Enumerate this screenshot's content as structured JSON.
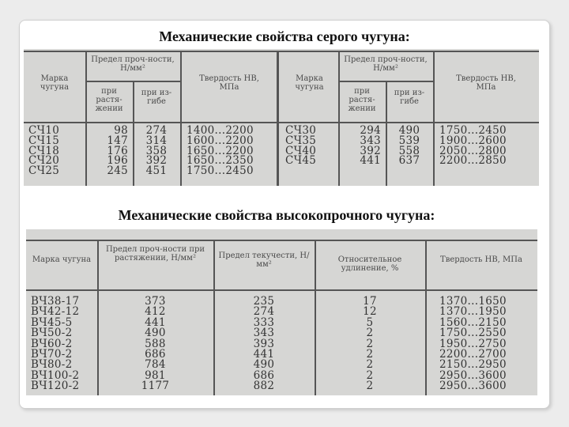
{
  "gray_iron": {
    "title": "Механические свойства серого чугуна:",
    "headers": {
      "grade": "Марка чугуна",
      "strength": "Предел проч-ности, Н/мм²",
      "tension": "при растя-жении",
      "bending": "при из-гибе",
      "hardness": "Твердость НВ, МПа"
    },
    "left_rows": [
      {
        "grade": "СЧ10",
        "tension": "98",
        "bending": "274",
        "hardness": "1400...2200"
      },
      {
        "grade": "СЧ15",
        "tension": "147",
        "bending": "314",
        "hardness": "1600...2200"
      },
      {
        "grade": "СЧ18",
        "tension": "176",
        "bending": "358",
        "hardness": "1650...2200"
      },
      {
        "grade": "СЧ20",
        "tension": "196",
        "bending": "392",
        "hardness": "1650...2350"
      },
      {
        "grade": "СЧ25",
        "tension": "245",
        "bending": "451",
        "hardness": "1750...2450"
      }
    ],
    "right_rows": [
      {
        "grade": "СЧ30",
        "tension": "294",
        "bending": "490",
        "hardness": "1750...2450"
      },
      {
        "grade": "СЧ35",
        "tension": "343",
        "bending": "539",
        "hardness": "1900...2600"
      },
      {
        "grade": "СЧ40",
        "tension": "392",
        "bending": "558",
        "hardness": "2050...2800"
      },
      {
        "grade": "СЧ45",
        "tension": "441",
        "bending": "637",
        "hardness": "2200...2850"
      }
    ]
  },
  "ductile_iron": {
    "title": "Механические свойства высокопрочного чугуна:",
    "headers": {
      "grade": "Марка чугуна",
      "tensile": "Предел проч-ности при растяжении, Н/мм²",
      "yield": "Предел текучести, Н/мм²",
      "elongation": "Относительное удлинение, %",
      "hardness": "Твердость НВ, МПа"
    },
    "rows": [
      {
        "grade": "ВЧ38-17",
        "tensile": "373",
        "yield": "235",
        "elongation": "17",
        "hardness": "1370...1650"
      },
      {
        "grade": "ВЧ42-12",
        "tensile": "412",
        "yield": "274",
        "elongation": "12",
        "hardness": "1370...1950"
      },
      {
        "grade": "ВЧ45-5",
        "tensile": "441",
        "yield": "333",
        "elongation": "5",
        "hardness": "1560...2150"
      },
      {
        "grade": "ВЧ50-2",
        "tensile": "490",
        "yield": "343",
        "elongation": "2",
        "hardness": "1750...2550"
      },
      {
        "grade": "ВЧ60-2",
        "tensile": "588",
        "yield": "393",
        "elongation": "2",
        "hardness": "1950...2750"
      },
      {
        "grade": "ВЧ70-2",
        "tensile": "686",
        "yield": "441",
        "elongation": "2",
        "hardness": "2200...2700"
      },
      {
        "grade": "ВЧ80-2",
        "tensile": "784",
        "yield": "490",
        "elongation": "2",
        "hardness": "2150...2950"
      },
      {
        "grade": "ВЧ100-2",
        "tensile": "981",
        "yield": "686",
        "elongation": "2",
        "hardness": "2950...3600"
      },
      {
        "grade": "ВЧ120-2",
        "tensile": "1177",
        "yield": "882",
        "elongation": "2",
        "hardness": "2950...3600"
      }
    ]
  }
}
